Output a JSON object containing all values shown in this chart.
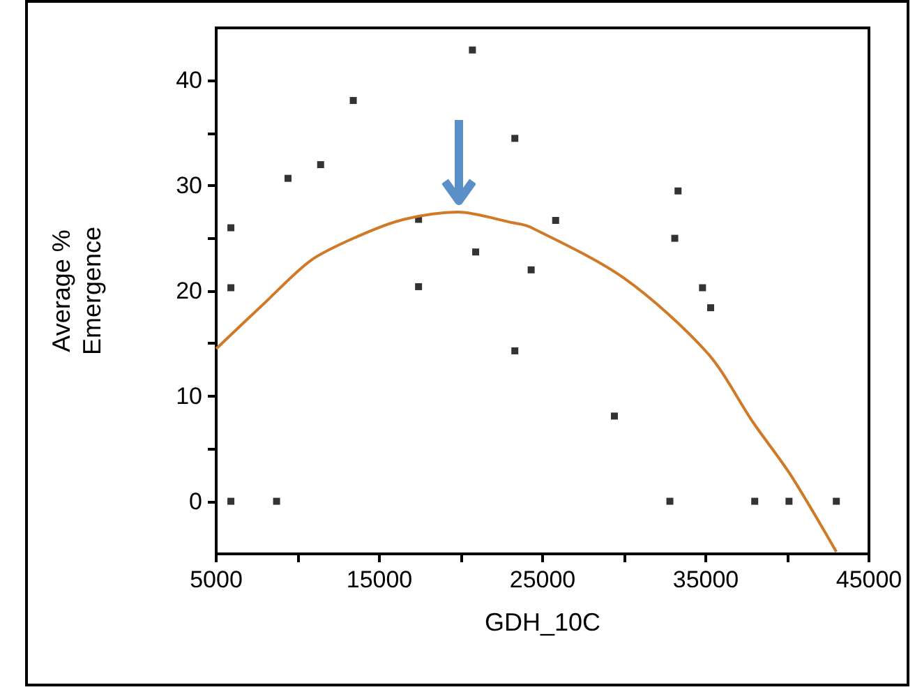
{
  "chart_data": {
    "type": "scatter",
    "xlabel": "GDH_10C",
    "ylabel": "Average %\nEmergence",
    "xlim": [
      5000,
      45000
    ],
    "ylim": [
      -5,
      45
    ],
    "xticks": [
      5000,
      {
        "value": 10000,
        "label": null
      },
      15000,
      {
        "value": 20000,
        "label": null
      },
      25000,
      {
        "value": 30000,
        "label": null
      },
      35000,
      {
        "value": 40000,
        "label": null
      },
      45000
    ],
    "yticks": [
      0,
      {
        "value": 5,
        "label": null
      },
      10,
      {
        "value": 15,
        "label": null
      },
      20,
      {
        "value": 25,
        "label": null
      },
      30,
      {
        "value": 35,
        "label": null
      },
      40
    ],
    "grid": false,
    "marker": "square",
    "series": [
      {
        "color": "#000000",
        "x": [
          5900,
          5900,
          5900,
          8700,
          9400,
          11400,
          13400,
          17400,
          17400,
          20700,
          20900,
          23300,
          23300,
          24300,
          25800,
          29400,
          32800,
          33300,
          33100,
          34800,
          35300,
          38000,
          40100,
          43000
        ],
        "values": [
          26,
          20.3,
          0,
          0,
          30.7,
          32,
          38.1,
          26.8,
          20.4,
          42.9,
          23.7,
          34.5,
          14.3,
          22,
          26.7,
          8.1,
          0,
          29.5,
          25,
          20.3,
          18.4,
          0,
          0,
          0
        ]
      },
      {
        "type": "line",
        "color": "#d07a28",
        "marker": "none",
        "line_style": "solid",
        "x": [
          5000,
          8000,
          10800,
          13700,
          16500,
          19800,
          23100,
          24200,
          30000,
          35100,
          37900,
          40200,
          43000
        ],
        "values": [
          14.5,
          18.9,
          22.9,
          25.2,
          26.8,
          27.5,
          26.5,
          26.1,
          21.2,
          14.1,
          7.5,
          2.5,
          -4.8
        ]
      }
    ]
  }
}
